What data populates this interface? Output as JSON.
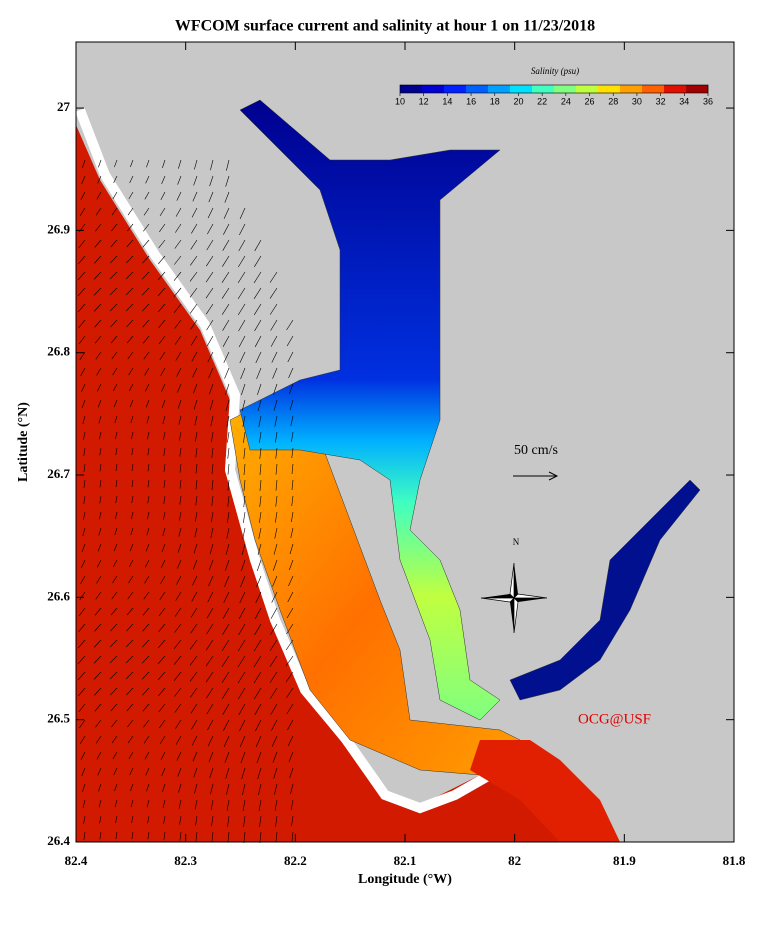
{
  "map": {
    "title": "WFCOM surface current and salinity at hour 1 on 11/23/2018",
    "xlabel": "Longitude (°W)",
    "ylabel": "Latitude (°N)",
    "xlim": [
      82.4,
      81.8
    ],
    "ylim": [
      26.4,
      27.054
    ],
    "xticks": [
      82.4,
      82.3,
      82.2,
      82.1,
      82.0,
      81.9,
      81.8
    ],
    "yticks": [
      26.4,
      26.5,
      26.6,
      26.7,
      26.8,
      26.9,
      27.0
    ],
    "colorbar": {
      "title": "Salinity (psu)",
      "lim": [
        10,
        36
      ],
      "ticks": [
        10,
        12,
        14,
        16,
        18,
        20,
        22,
        24,
        26,
        28,
        30,
        32,
        34,
        36
      ],
      "colors": [
        "#00008f",
        "#0000d0",
        "#0020ff",
        "#0060ff",
        "#00a0ff",
        "#00e0ff",
        "#40ffc0",
        "#80ff80",
        "#c0ff40",
        "#ffe000",
        "#ffa000",
        "#ff6000",
        "#e01000",
        "#a00000"
      ]
    },
    "annotations": {
      "scale": "50 cm/s",
      "north": "N",
      "credit": "OCG@USF"
    }
  }
}
